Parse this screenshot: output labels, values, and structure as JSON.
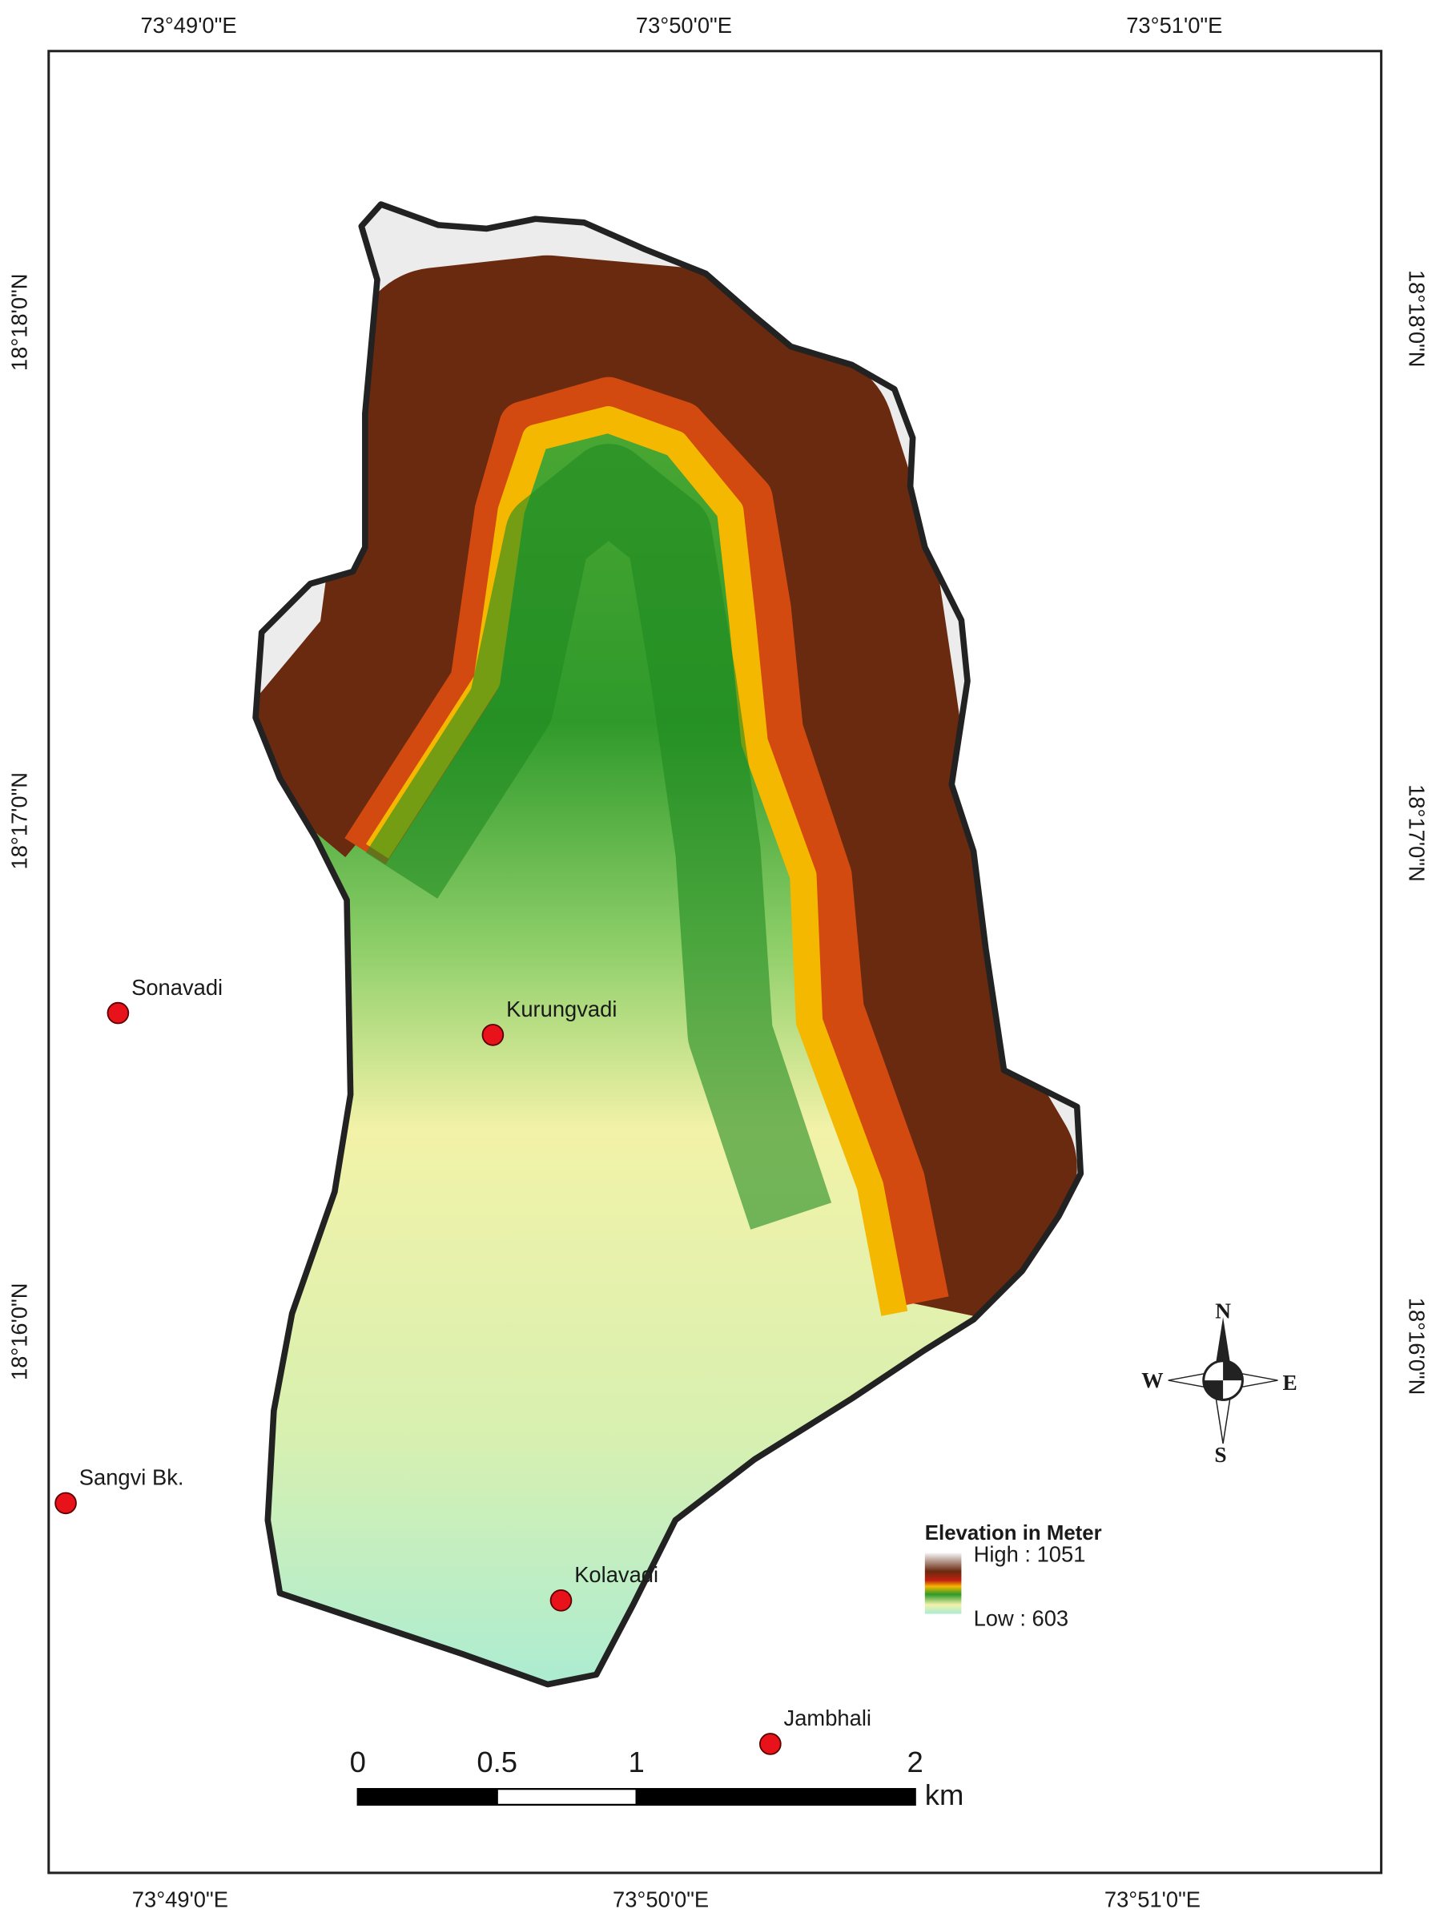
{
  "axis_labels": {
    "top": [
      "73°49'0\"E",
      "73°50'0\"E",
      "73°51'0\"E"
    ],
    "bottom": [
      "73°49'0\"E",
      "73°50'0\"E",
      "73°51'0\"E"
    ],
    "left": [
      "18°18'0\"N",
      "18°17'0\"N",
      "18°16'0\"N"
    ],
    "right": [
      "18°18'0\"N",
      "18°17'0\"N",
      "18°16'0\"N"
    ]
  },
  "places": [
    {
      "name": "Sonavadi"
    },
    {
      "name": "Kurungvadi"
    },
    {
      "name": "Sangvi Bk."
    },
    {
      "name": "Kolavadi"
    },
    {
      "name": "Jambhali"
    }
  ],
  "legend": {
    "title": "Elevation in Meter",
    "high": "High : 1051",
    "low": "Low : 603"
  },
  "scale_bar": {
    "ticks": [
      0,
      0.5,
      1,
      2
    ],
    "unit": "km"
  },
  "compass": {
    "n": "N",
    "s": "S",
    "e": "E",
    "w": "W"
  }
}
